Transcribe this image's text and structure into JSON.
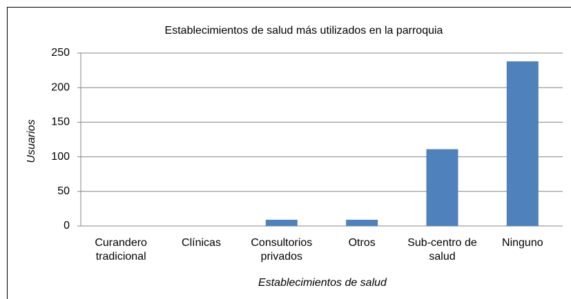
{
  "chart_data": {
    "type": "bar",
    "title": "Establecimientos de salud más utilizados en la parroquia",
    "x_label": "Establecimientos de salud",
    "y_label": "Usuarios",
    "categories": [
      "Curandero tradicional",
      "Clínicas",
      "Consultorios privados",
      "Otros",
      "Sub-centro de salud",
      "Ninguno"
    ],
    "values": [
      0,
      0,
      9,
      9,
      111,
      238
    ],
    "color": "#4f81bd",
    "ylim": [
      0,
      250
    ],
    "yticks": [
      0,
      50,
      100,
      150,
      200,
      250
    ],
    "grid": true
  }
}
